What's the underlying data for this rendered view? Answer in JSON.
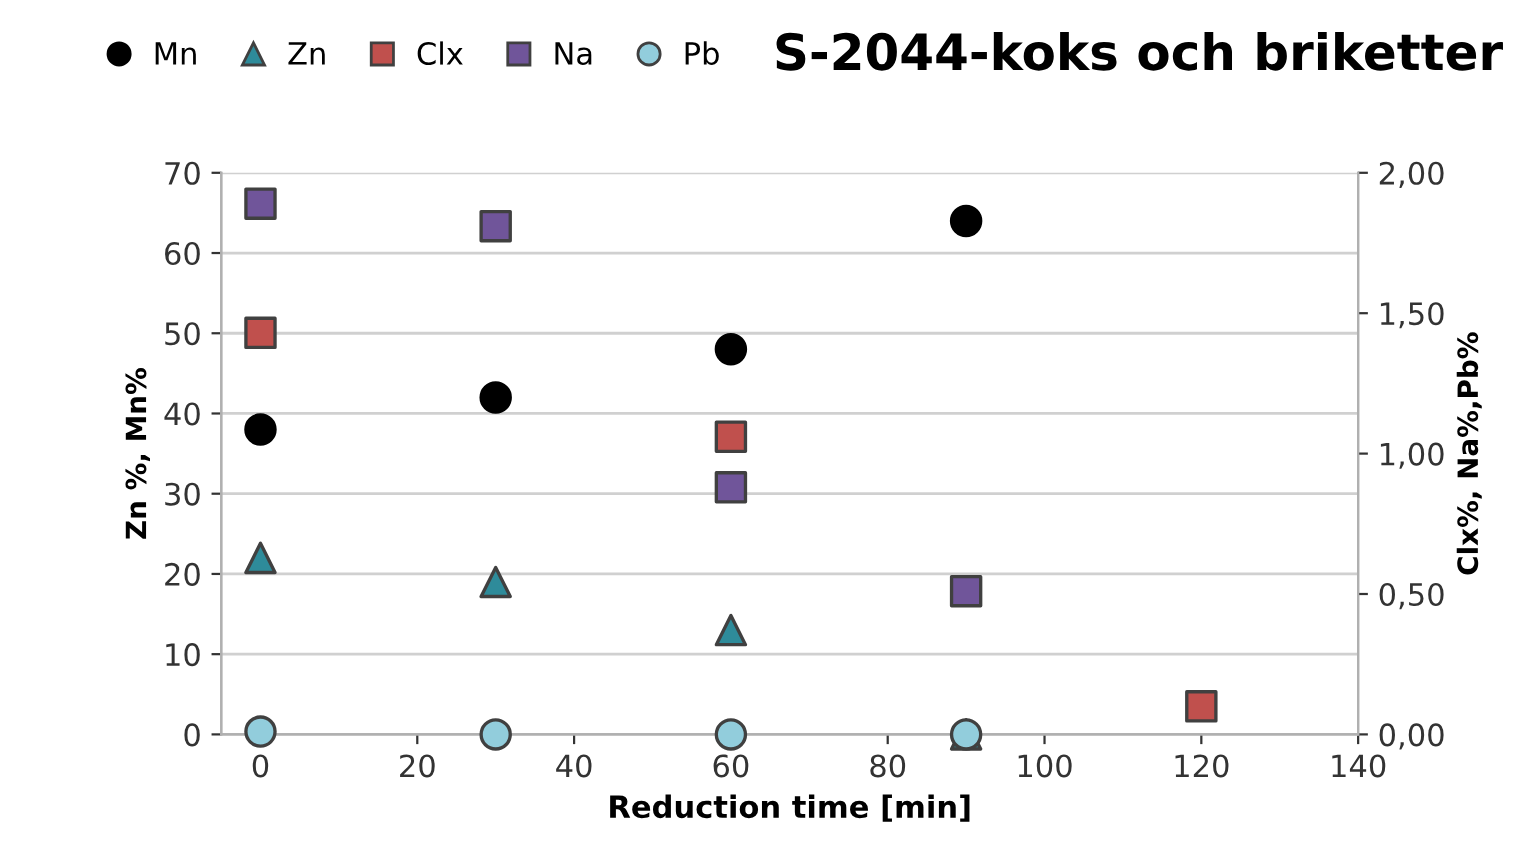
{
  "chart_data": {
    "type": "scatter",
    "title": "S-2044-koks och briketter",
    "xlabel": "Reduction time [min]",
    "ylabel": "Zn %, Mn%",
    "y2label": "Clx%, Na%,Pb%",
    "series": [
      {
        "name": "Mn",
        "color": "#000000",
        "marker": "circle",
        "x": [
          0,
          30,
          60,
          90
        ],
        "values": [
          38,
          42,
          48,
          64
        ]
      },
      {
        "name": "Zn",
        "color": "#2e8b9a",
        "marker": "triangle",
        "x": [
          0,
          30,
          60,
          90
        ],
        "values": [
          22,
          19,
          13,
          0
        ]
      },
      {
        "name": "Clx",
        "color": "#c0504d",
        "marker": "square",
        "axis": "y2",
        "x": [
          0,
          60,
          120
        ],
        "values": [
          1.43,
          1.06,
          0.1
        ]
      },
      {
        "name": "Na",
        "color": "#70559a",
        "marker": "square",
        "axis": "y2",
        "x": [
          0,
          30,
          60,
          90
        ],
        "values": [
          1.89,
          1.81,
          0.88,
          0.51
        ]
      },
      {
        "name": "Pb",
        "color": "#92cddc",
        "marker": "circle",
        "axis": "y2",
        "x": [
          0,
          30,
          60,
          90
        ],
        "values": [
          0.01,
          0,
          0,
          0
        ]
      }
    ],
    "xlim": [
      -5,
      140
    ],
    "xticks": [
      0,
      20,
      40,
      60,
      80,
      100,
      120,
      140
    ],
    "ylim": [
      0,
      70
    ],
    "yticks": [
      0,
      10,
      20,
      30,
      40,
      50,
      60,
      70
    ],
    "y2lim": [
      0,
      2
    ],
    "y2ticks": [
      {
        "value": 0,
        "label": "0,00"
      },
      {
        "value": 0.5,
        "label": "0,50"
      },
      {
        "value": 1,
        "label": "1,00"
      },
      {
        "value": 1.5,
        "label": "1,50"
      },
      {
        "value": 2,
        "label": "2,00"
      }
    ],
    "grid": "y",
    "legend": "top left"
  }
}
